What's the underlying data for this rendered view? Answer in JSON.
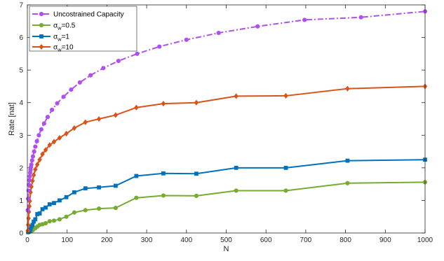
{
  "chart_data": {
    "type": "line",
    "xlabel": "N",
    "ylabel": "Rate [nat]",
    "xlim": [
      0,
      1000
    ],
    "ylim": [
      0,
      7
    ],
    "xticks": [
      0,
      100,
      200,
      300,
      400,
      500,
      600,
      700,
      800,
      900,
      1000
    ],
    "yticks": [
      0,
      1,
      2,
      3,
      4,
      5,
      6,
      7
    ],
    "grid": false,
    "legend_position": "top-left",
    "series": [
      {
        "name": "Uncostrained Capacity",
        "color": "#b04ff0",
        "line_style": "dash-dot",
        "marker": "circle",
        "x": [
          1,
          2,
          3,
          4,
          5,
          6,
          7,
          8,
          9,
          10,
          12,
          14,
          17,
          20,
          24,
          29,
          35,
          42,
          51,
          62,
          75,
          91,
          110,
          132,
          159,
          191,
          229,
          276,
          332,
          400,
          481,
          579,
          697,
          839,
          1000
        ],
        "y": [
          0.7,
          1.05,
          1.3,
          1.48,
          1.62,
          1.74,
          1.85,
          1.94,
          2.02,
          2.1,
          2.23,
          2.35,
          2.5,
          2.65,
          2.82,
          3.0,
          3.18,
          3.36,
          3.56,
          3.78,
          3.98,
          4.18,
          4.4,
          4.62,
          4.84,
          5.06,
          5.28,
          5.5,
          5.72,
          5.93,
          6.14,
          6.34,
          6.54,
          6.62,
          6.8
        ]
      },
      {
        "name": "σ_w=0.5",
        "color": "#77ac30",
        "line_style": "solid",
        "marker": "circle",
        "x": [
          2,
          4,
          6,
          8,
          10,
          13,
          16,
          20,
          25,
          31,
          38,
          46,
          56,
          67,
          81,
          98,
          118,
          146,
          180,
          222,
          274,
          342,
          425,
          525,
          650,
          805,
          1000
        ],
        "y": [
          0.02,
          0.03,
          0.04,
          0.05,
          0.06,
          0.08,
          0.12,
          0.15,
          0.2,
          0.25,
          0.27,
          0.3,
          0.36,
          0.38,
          0.42,
          0.5,
          0.63,
          0.7,
          0.75,
          0.77,
          1.08,
          1.15,
          1.14,
          1.3,
          1.3,
          1.53,
          1.56
        ]
      },
      {
        "name": "σ_w=1",
        "color": "#0072bd",
        "line_style": "solid",
        "marker": "square",
        "x": [
          2,
          4,
          6,
          8,
          10,
          13,
          16,
          20,
          25,
          31,
          38,
          46,
          56,
          67,
          81,
          98,
          118,
          146,
          180,
          222,
          274,
          342,
          425,
          525,
          650,
          805,
          1000
        ],
        "y": [
          0.03,
          0.05,
          0.07,
          0.12,
          0.2,
          0.25,
          0.35,
          0.42,
          0.58,
          0.6,
          0.73,
          0.78,
          0.88,
          0.92,
          1.0,
          1.1,
          1.25,
          1.37,
          1.4,
          1.45,
          1.75,
          1.83,
          1.82,
          2.0,
          2.0,
          2.22,
          2.25
        ]
      },
      {
        "name": "σ_w=10",
        "color": "#d95319",
        "line_style": "solid",
        "marker": "diamond",
        "x": [
          1,
          2,
          3,
          4,
          5,
          6,
          8,
          10,
          13,
          16,
          20,
          25,
          31,
          38,
          46,
          56,
          67,
          81,
          98,
          118,
          146,
          180,
          222,
          274,
          342,
          425,
          525,
          650,
          805,
          1000
        ],
        "y": [
          0.07,
          0.25,
          0.45,
          0.65,
          0.82,
          0.98,
          1.25,
          1.42,
          1.6,
          1.78,
          1.95,
          2.1,
          2.25,
          2.42,
          2.55,
          2.7,
          2.8,
          2.92,
          3.05,
          3.22,
          3.4,
          3.5,
          3.62,
          3.85,
          3.97,
          4.0,
          4.2,
          4.21,
          4.43,
          4.5
        ]
      }
    ]
  }
}
